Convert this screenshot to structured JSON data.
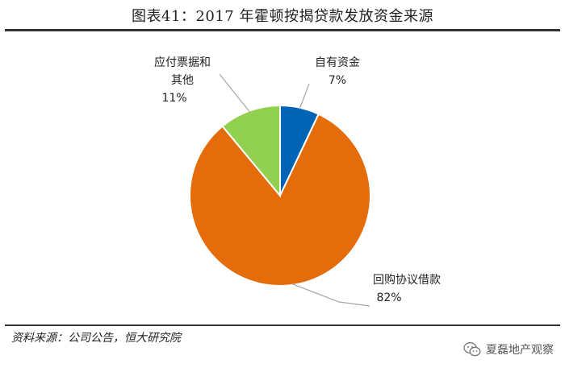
{
  "page": {
    "title": "图表41：2017 年霍顿按揭贷款发放资金来源",
    "source": "资料来源：公司公告，恒大研究院",
    "watermark": "夏磊地产观察",
    "watermark_icon": "wechat-icon"
  },
  "chart_data": {
    "type": "pie",
    "title": "图表41：2017 年霍顿按揭贷款发放资金来源",
    "slices": [
      {
        "label": "自有资金",
        "percent_label": "7%",
        "value": 7,
        "color": "#0064b4"
      },
      {
        "label": "回购协议借款",
        "percent_label": "82%",
        "value": 82,
        "color": "#e46c0a"
      },
      {
        "label": "应付票据和其他",
        "label_lines": [
          "应付票据和",
          "其他"
        ],
        "percent_label": "11%",
        "value": 11,
        "color": "#92d050"
      }
    ],
    "start_angle_deg": 0,
    "direction": "clockwise",
    "slice_border_color": "#ffffff",
    "leader_line_color": "#a6a6a6"
  }
}
